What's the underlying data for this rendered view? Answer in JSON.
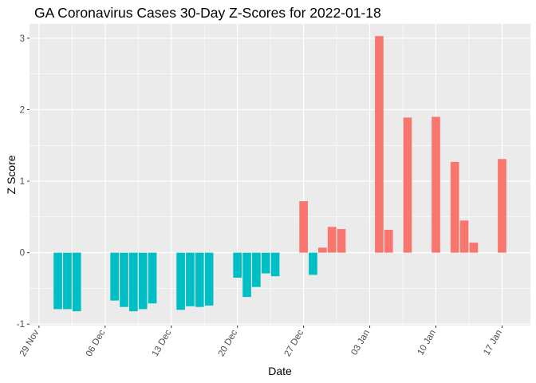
{
  "chart_data": {
    "type": "bar",
    "title": "GA Coronavirus Cases 30-Day Z-Scores for 2022-01-18",
    "xlabel": "Date",
    "ylabel": "Z Score",
    "x_tick_labels": [
      "29 Nov",
      "06 Dec",
      "13 Dec",
      "20 Dec",
      "27 Dec",
      "03 Jan",
      "10 Jan",
      "17 Jan"
    ],
    "x_tick_dates": [
      "2021-11-29",
      "2021-12-06",
      "2021-12-13",
      "2021-12-20",
      "2021-12-27",
      "2022-01-03",
      "2022-01-10",
      "2022-01-17"
    ],
    "x_range": [
      "2021-11-28",
      "2022-01-20"
    ],
    "y_ticks": [
      -1,
      0,
      1,
      2,
      3
    ],
    "ylim": [
      -1.02,
      3.2
    ],
    "grid": true,
    "legend": "none",
    "colors": {
      "positive": "#F8766D",
      "negative": "#00BFC4",
      "panel": "#EBEBEB",
      "grid": "#FFFFFF"
    },
    "dates": [
      "2021-12-01",
      "2021-12-02",
      "2021-12-03",
      "2021-12-07",
      "2021-12-08",
      "2021-12-09",
      "2021-12-10",
      "2021-12-11",
      "2021-12-14",
      "2021-12-15",
      "2021-12-16",
      "2021-12-17",
      "2021-12-20",
      "2021-12-21",
      "2021-12-22",
      "2021-12-23",
      "2021-12-24",
      "2021-12-27",
      "2021-12-28",
      "2021-12-29",
      "2021-12-30",
      "2021-12-31",
      "2022-01-04",
      "2022-01-05",
      "2022-01-07",
      "2022-01-10",
      "2022-01-12",
      "2022-01-13",
      "2022-01-14",
      "2022-01-17"
    ],
    "values": [
      -0.79,
      -0.79,
      -0.82,
      -0.67,
      -0.76,
      -0.82,
      -0.79,
      -0.71,
      -0.8,
      -0.75,
      -0.76,
      -0.74,
      -0.35,
      -0.62,
      -0.48,
      -0.29,
      -0.33,
      0.72,
      -0.31,
      0.07,
      0.36,
      0.33,
      3.03,
      0.32,
      1.89,
      1.9,
      1.27,
      0.45,
      0.14,
      1.31
    ]
  }
}
